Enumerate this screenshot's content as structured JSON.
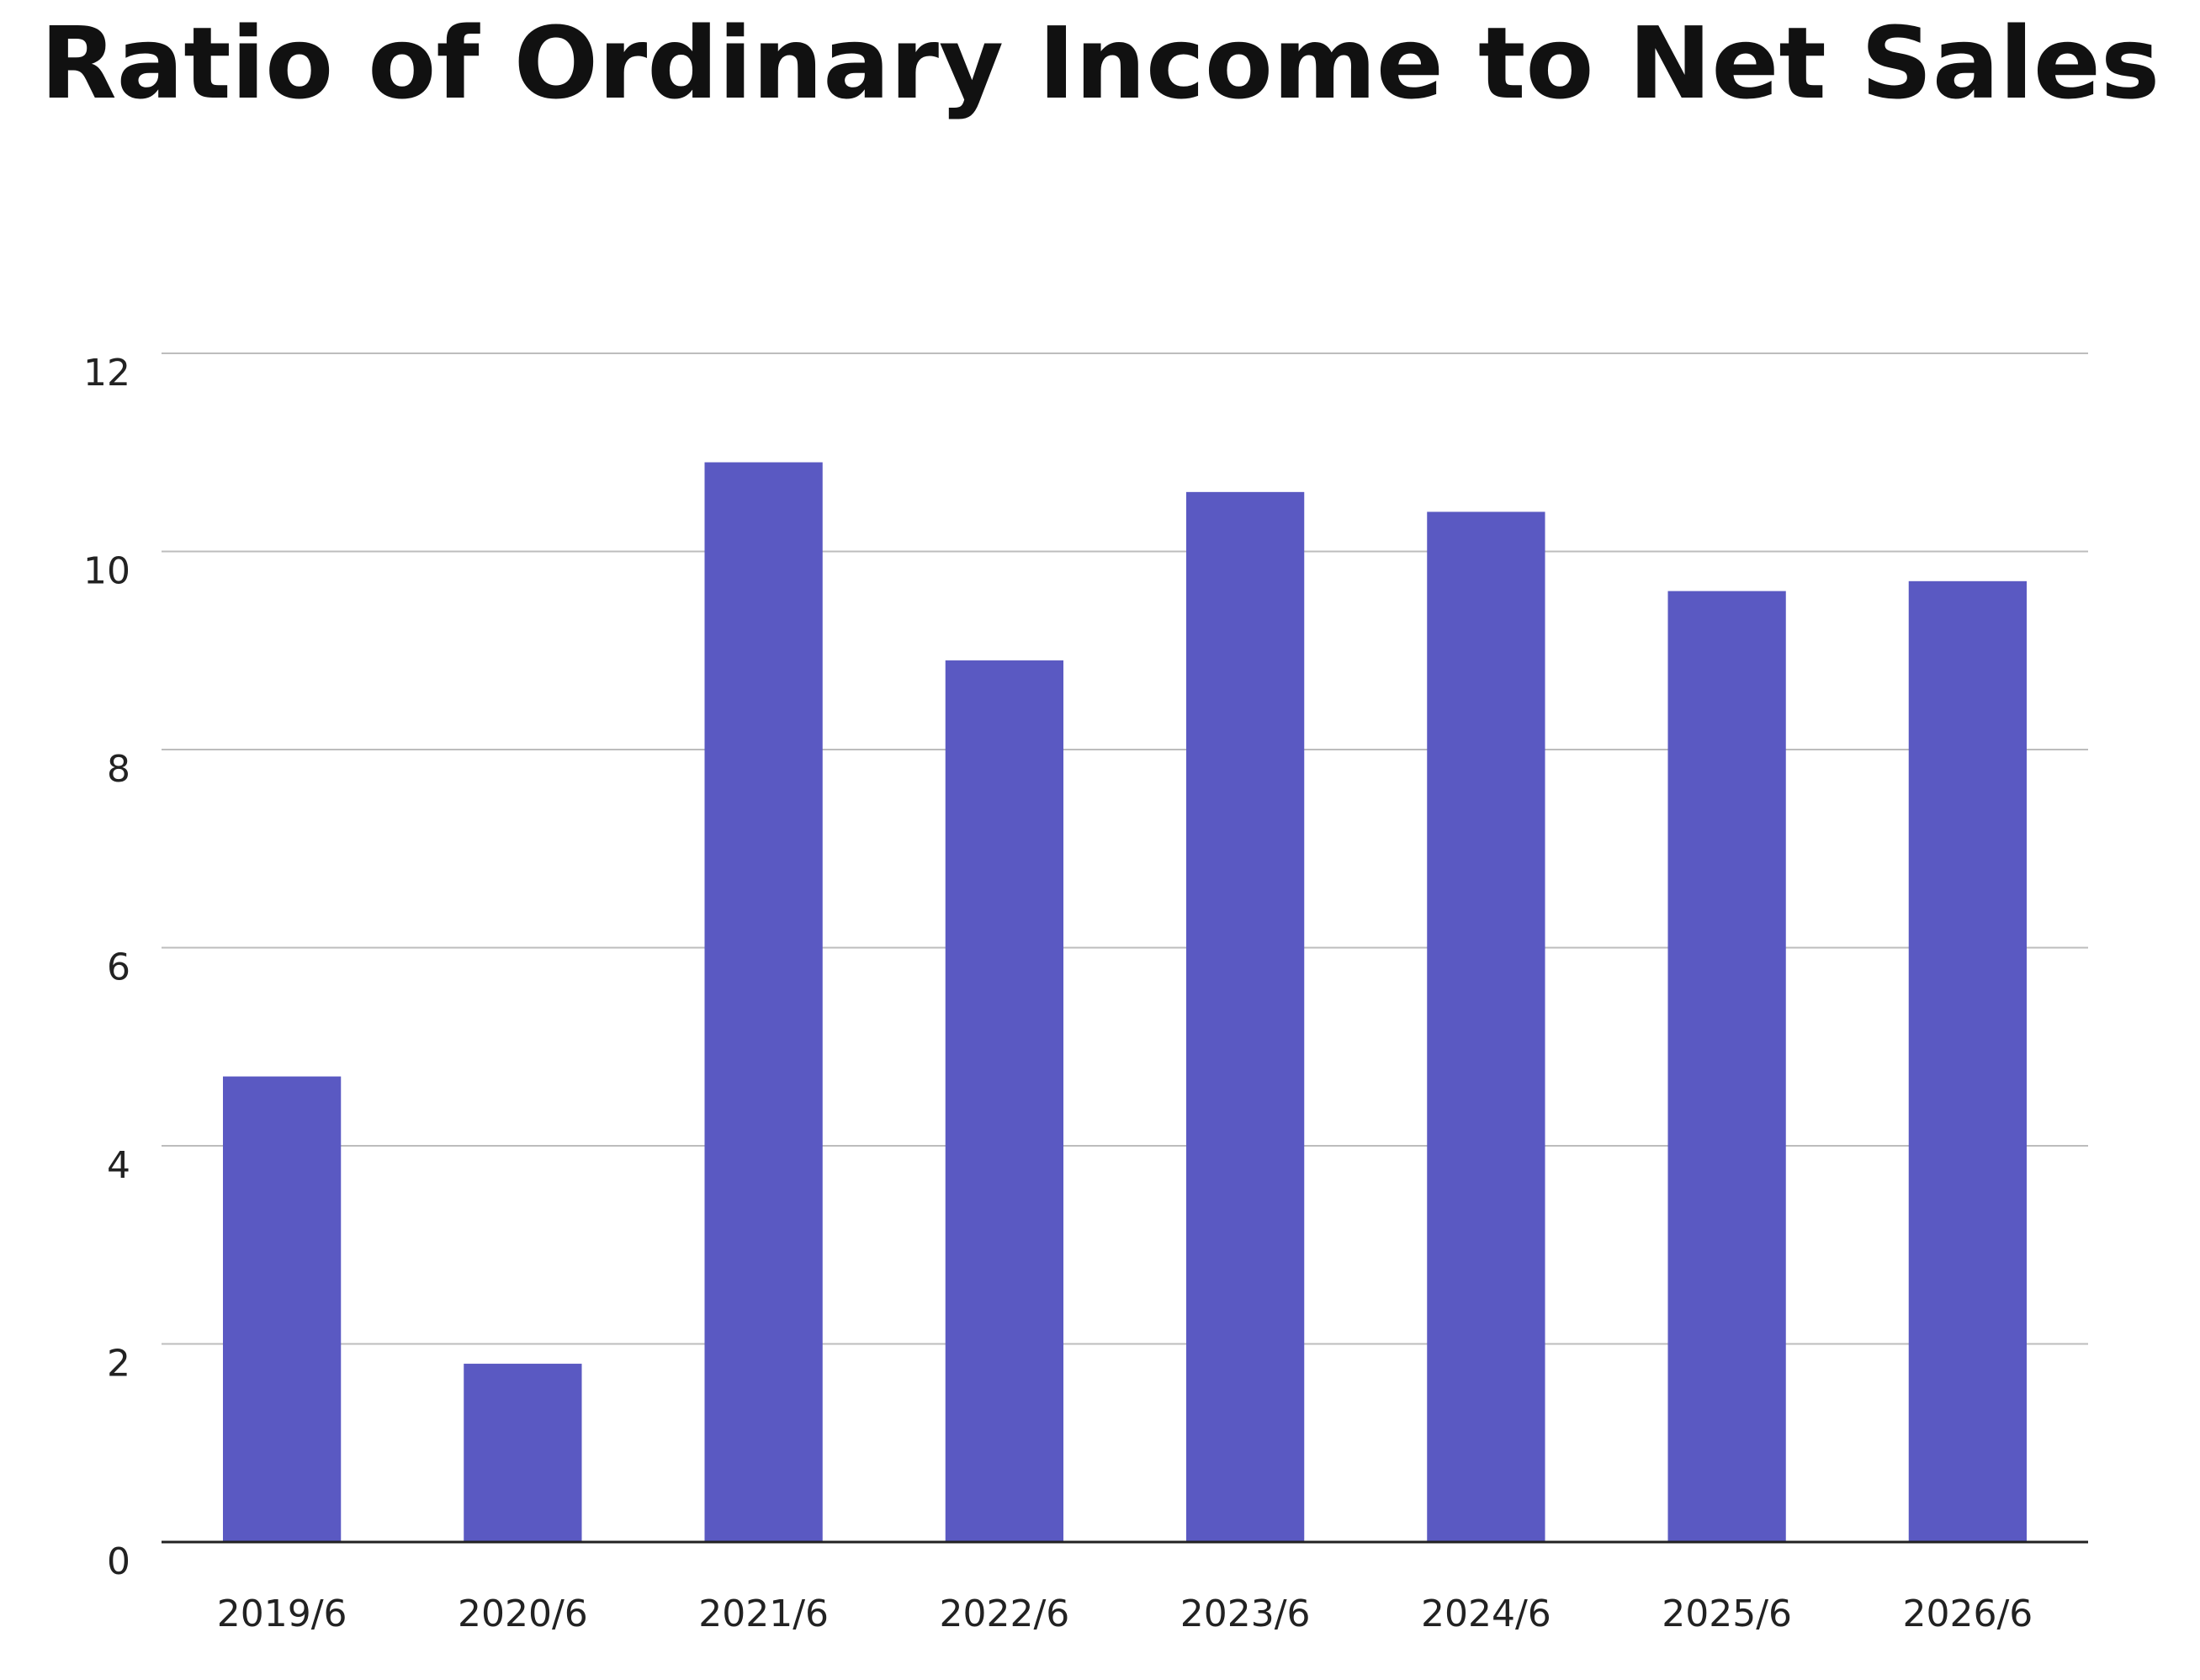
{
  "chart_data": {
    "type": "bar",
    "title": "Ratio of Ordinary Income to Net Sales",
    "xlabel": "",
    "ylabel": "",
    "categories": [
      "2019/6",
      "2020/6",
      "2021/6",
      "2022/6",
      "2023/6",
      "2024/6",
      "2025/6",
      "2026/6"
    ],
    "values": [
      4.7,
      1.8,
      10.9,
      8.9,
      10.6,
      10.4,
      9.6,
      9.7
    ],
    "ylim": [
      0,
      12
    ],
    "yticks": [
      0,
      2,
      4,
      6,
      8,
      10,
      12
    ],
    "grid": true,
    "legend": "none",
    "bar_color": "#5a59c2"
  }
}
